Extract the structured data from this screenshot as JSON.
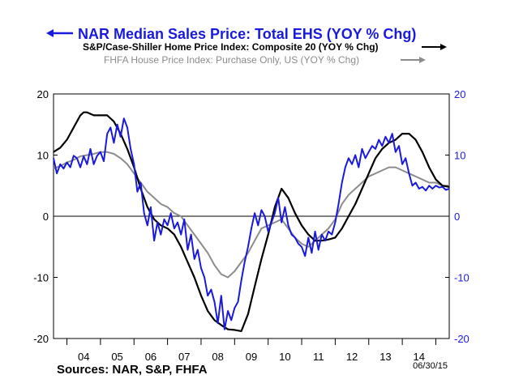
{
  "chart_data": {
    "type": "line",
    "title": "",
    "legend": [
      {
        "name": "NAR Median Sales Price: Total EHS (YOY % Chg)",
        "color": "#1a1adc",
        "axis": "left",
        "arrow": "left"
      },
      {
        "name": "S&P/Case-Shiller Home Price Index: Composite 20 (YOY % Chg)",
        "color": "#000000",
        "axis": "right",
        "arrow": "right"
      },
      {
        "name": "FHFA House Price Index: Purchase Only, US (YOY % Chg)",
        "color": "#8c8c8c",
        "axis": "right",
        "arrow": "right"
      }
    ],
    "x_tick_labels": [
      "04",
      "05",
      "06",
      "07",
      "08",
      "09",
      "10",
      "11",
      "12",
      "13",
      "14"
    ],
    "x_range": [
      2003.6,
      2015.4
    ],
    "y_left": {
      "range": [
        -20,
        20
      ],
      "ticks": [
        "20",
        "10",
        "0",
        "-10",
        "-20"
      ],
      "tick_values": [
        20,
        10,
        0,
        -10,
        -20
      ]
    },
    "y_right": {
      "range": [
        -20,
        20
      ],
      "ticks": [
        "20",
        "10",
        "0",
        "-10",
        "-20"
      ],
      "tick_values": [
        20,
        10,
        0,
        -10,
        -20
      ]
    },
    "zero_line": true,
    "legend_placement": "top",
    "series": [
      {
        "name": "NAR Median Sales Price: Total EHS (YOY % Chg)",
        "color": "#1a1adc",
        "x": [
          2003.6,
          2003.7,
          2003.8,
          2003.9,
          2004.0,
          2004.1,
          2004.2,
          2004.3,
          2004.4,
          2004.5,
          2004.6,
          2004.7,
          2004.8,
          2004.9,
          2005.0,
          2005.1,
          2005.2,
          2005.3,
          2005.4,
          2005.5,
          2005.6,
          2005.7,
          2005.8,
          2005.9,
          2006.0,
          2006.1,
          2006.2,
          2006.3,
          2006.4,
          2006.5,
          2006.6,
          2006.7,
          2006.8,
          2006.9,
          2007.0,
          2007.1,
          2007.2,
          2007.3,
          2007.4,
          2007.5,
          2007.6,
          2007.7,
          2007.8,
          2007.9,
          2008.0,
          2008.1,
          2008.2,
          2008.3,
          2008.4,
          2008.5,
          2008.6,
          2008.7,
          2008.8,
          2008.9,
          2009.0,
          2009.1,
          2009.2,
          2009.3,
          2009.4,
          2009.5,
          2009.6,
          2009.7,
          2009.8,
          2009.9,
          2010.0,
          2010.1,
          2010.2,
          2010.3,
          2010.4,
          2010.5,
          2010.6,
          2010.7,
          2010.8,
          2010.9,
          2011.0,
          2011.1,
          2011.2,
          2011.3,
          2011.4,
          2011.5,
          2011.6,
          2011.7,
          2011.8,
          2011.9,
          2012.0,
          2012.1,
          2012.2,
          2012.3,
          2012.4,
          2012.5,
          2012.6,
          2012.7,
          2012.8,
          2012.9,
          2013.0,
          2013.1,
          2013.2,
          2013.3,
          2013.4,
          2013.5,
          2013.6,
          2013.7,
          2013.8,
          2013.9,
          2014.0,
          2014.1,
          2014.2,
          2014.3,
          2014.4,
          2014.5,
          2014.6,
          2014.7,
          2014.8,
          2014.9,
          2015.0,
          2015.1,
          2015.2,
          2015.3,
          2015.4
        ],
        "values": [
          9.5,
          7.0,
          8.5,
          7.8,
          8.8,
          8.0,
          9.9,
          9.5,
          8.0,
          9.8,
          8.5,
          11.0,
          8.5,
          9.9,
          10.5,
          9.0,
          13.5,
          14.5,
          12.0,
          15.0,
          13.0,
          16.0,
          14.5,
          11.0,
          8.5,
          4.0,
          5.5,
          0.5,
          -1.5,
          1.5,
          -4.0,
          -1.0,
          -3.0,
          -0.5,
          -1.5,
          0.5,
          -2.0,
          -1.0,
          -3.0,
          -0.5,
          -5.5,
          -3.0,
          -7.0,
          -5.5,
          -8.5,
          -10.0,
          -13.0,
          -12.0,
          -14.0,
          -17.5,
          -13.0,
          -18.5,
          -15.5,
          -17.0,
          -15.0,
          -14.0,
          -10.5,
          -7.5,
          -5.0,
          -2.0,
          0.5,
          -1.5,
          1.0,
          0.0,
          -2.5,
          -1.0,
          0.5,
          3.0,
          -1.0,
          1.5,
          -1.5,
          -3.0,
          -3.5,
          -4.5,
          -5.0,
          -6.5,
          -3.5,
          -6.0,
          -2.5,
          -5.5,
          -3.0,
          -4.0,
          -2.5,
          -3.0,
          -1.0,
          2.0,
          5.5,
          8.0,
          9.5,
          8.5,
          10.0,
          8.0,
          11.0,
          9.5,
          10.5,
          11.5,
          11.0,
          12.5,
          11.5,
          13.0,
          12.0,
          13.5,
          10.5,
          11.5,
          8.5,
          9.5,
          7.0,
          5.0,
          5.5,
          4.5,
          4.8,
          4.2,
          5.0,
          4.5,
          5.0,
          4.7,
          4.8,
          4.3,
          4.5
        ]
      },
      {
        "name": "S&P/Case-Shiller Home Price Index: Composite 20 (YOY % Chg)",
        "color": "#000000",
        "x": [
          2003.6,
          2003.8,
          2004.0,
          2004.2,
          2004.4,
          2004.5,
          2004.6,
          2004.8,
          2005.0,
          2005.2,
          2005.4,
          2005.6,
          2005.8,
          2006.0,
          2006.2,
          2006.4,
          2006.6,
          2006.8,
          2007.0,
          2007.2,
          2007.4,
          2007.6,
          2007.8,
          2008.0,
          2008.2,
          2008.4,
          2008.6,
          2008.8,
          2009.0,
          2009.2,
          2009.4,
          2009.6,
          2009.8,
          2010.0,
          2010.2,
          2010.4,
          2010.6,
          2010.8,
          2011.0,
          2011.2,
          2011.4,
          2011.6,
          2011.8,
          2012.0,
          2012.2,
          2012.4,
          2012.6,
          2012.8,
          2013.0,
          2013.2,
          2013.4,
          2013.6,
          2013.8,
          2014.0,
          2014.2,
          2014.4,
          2014.6,
          2014.8,
          2015.0,
          2015.2,
          2015.4
        ],
        "values": [
          10.5,
          11.2,
          12.5,
          14.5,
          16.5,
          17.0,
          17.0,
          16.5,
          16.5,
          16.5,
          15.5,
          13.5,
          11.0,
          8.0,
          4.5,
          1.5,
          -0.5,
          -1.5,
          -2.0,
          -3.0,
          -5.0,
          -7.5,
          -10.0,
          -13.0,
          -15.5,
          -17.0,
          -17.8,
          -18.5,
          -18.6,
          -18.8,
          -16.0,
          -11.5,
          -7.0,
          -3.0,
          1.5,
          4.5,
          3.0,
          0.5,
          -1.5,
          -3.0,
          -4.0,
          -4.0,
          -3.8,
          -3.5,
          -2.0,
          0.0,
          2.0,
          4.5,
          7.0,
          9.5,
          11.0,
          12.0,
          12.5,
          13.5,
          13.5,
          12.5,
          10.5,
          8.0,
          6.0,
          5.0,
          4.8
        ]
      },
      {
        "name": "FHFA House Price Index: Purchase Only, US (YOY % Chg)",
        "color": "#8c8c8c",
        "x": [
          2003.6,
          2003.8,
          2004.0,
          2004.2,
          2004.4,
          2004.6,
          2004.8,
          2005.0,
          2005.2,
          2005.4,
          2005.6,
          2005.8,
          2006.0,
          2006.2,
          2006.4,
          2006.6,
          2006.8,
          2007.0,
          2007.2,
          2007.4,
          2007.6,
          2007.8,
          2008.0,
          2008.2,
          2008.4,
          2008.6,
          2008.8,
          2009.0,
          2009.2,
          2009.4,
          2009.6,
          2009.8,
          2010.0,
          2010.2,
          2010.4,
          2010.6,
          2010.8,
          2011.0,
          2011.2,
          2011.4,
          2011.6,
          2011.8,
          2012.0,
          2012.2,
          2012.4,
          2012.6,
          2012.8,
          2013.0,
          2013.2,
          2013.4,
          2013.6,
          2013.8,
          2014.0,
          2014.2,
          2014.4,
          2014.6,
          2014.8,
          2015.0,
          2015.2,
          2015.4
        ],
        "values": [
          7.8,
          8.2,
          8.8,
          9.2,
          9.8,
          10.0,
          10.2,
          10.5,
          10.5,
          10.2,
          9.5,
          8.5,
          7.0,
          5.5,
          4.0,
          3.0,
          2.0,
          1.5,
          0.5,
          0.0,
          -1.5,
          -3.0,
          -4.5,
          -6.0,
          -8.0,
          -9.5,
          -10.0,
          -9.0,
          -7.5,
          -6.0,
          -4.0,
          -2.0,
          -1.5,
          -1.0,
          -0.5,
          -2.0,
          -3.5,
          -4.5,
          -5.0,
          -4.0,
          -3.0,
          -2.0,
          -0.5,
          2.0,
          3.5,
          4.5,
          5.5,
          6.5,
          7.0,
          7.5,
          8.0,
          8.0,
          7.5,
          7.0,
          6.5,
          6.0,
          5.5,
          5.5,
          5.0,
          5.0
        ]
      }
    ]
  },
  "footer": {
    "sources": "Sources:  NAR, S&P, FHFA",
    "date": "06/30/15"
  }
}
